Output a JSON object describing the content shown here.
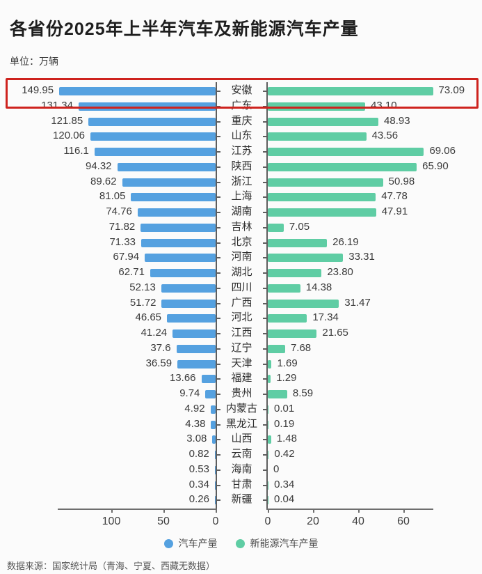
{
  "title": "各省份2025年上半年汽车及新能源汽车产量",
  "unit_label": "单位：万辆",
  "source": "数据来源：国家统计局（青海、宁夏、西藏无数据）",
  "colors": {
    "auto_bar": "#55a1e0",
    "nev_bar": "#5fcda4",
    "highlight_box": "#ce231e",
    "axis": "#5e5e5e"
  },
  "legend": [
    {
      "label": "汽车产量",
      "color": "#55a1e0",
      "icon": "legend-dot-blue"
    },
    {
      "label": "新能源汽车产量",
      "color": "#5fcda4",
      "icon": "legend-dot-green"
    }
  ],
  "chart_data": {
    "type": "bar",
    "variant": "diverging-horizontal",
    "title": "各省份2025年上半年汽车及新能源汽车产量",
    "unit": "万辆",
    "categories": [
      "安徽",
      "广东",
      "重庆",
      "山东",
      "江苏",
      "陕西",
      "浙江",
      "上海",
      "湖南",
      "吉林",
      "北京",
      "河南",
      "湖北",
      "四川",
      "广西",
      "河北",
      "江西",
      "辽宁",
      "天津",
      "福建",
      "贵州",
      "内蒙古",
      "黑龙江",
      "山西",
      "云南",
      "海南",
      "甘肃",
      "新疆"
    ],
    "series": [
      {
        "name": "汽车产量",
        "side": "left",
        "color": "#55a1e0",
        "values": [
          "149.95",
          "131.34",
          "121.85",
          "120.06",
          "116.1",
          "94.32",
          "89.62",
          "81.05",
          "74.76",
          "71.82",
          "71.33",
          "67.94",
          "62.71",
          "52.13",
          "51.72",
          "46.65",
          "41.24",
          "37.6",
          "36.59",
          "13.66",
          "9.74",
          "4.92",
          "4.38",
          "3.08",
          "0.82",
          "0.53",
          "0.34",
          "0.26"
        ],
        "axis_ticks": [
          100,
          50,
          0
        ],
        "axis_max": 150
      },
      {
        "name": "新能源汽车产量",
        "side": "right",
        "color": "#5fcda4",
        "values": [
          "73.09",
          "43.10",
          "48.93",
          "43.56",
          "69.06",
          "65.90",
          "50.98",
          "47.78",
          "47.91",
          "7.05",
          "26.19",
          "33.31",
          "23.80",
          "14.38",
          "31.47",
          "17.34",
          "21.65",
          "7.68",
          "1.69",
          "1.29",
          "8.59",
          "0.01",
          "0.19",
          "1.48",
          "0.42",
          "0",
          "0.34",
          "0.04"
        ],
        "axis_ticks": [
          0,
          20,
          40,
          60
        ],
        "axis_max": 73.09
      }
    ],
    "highlight": {
      "category": "安徽",
      "index": 0
    },
    "legend_position": "bottom",
    "grid": false
  }
}
